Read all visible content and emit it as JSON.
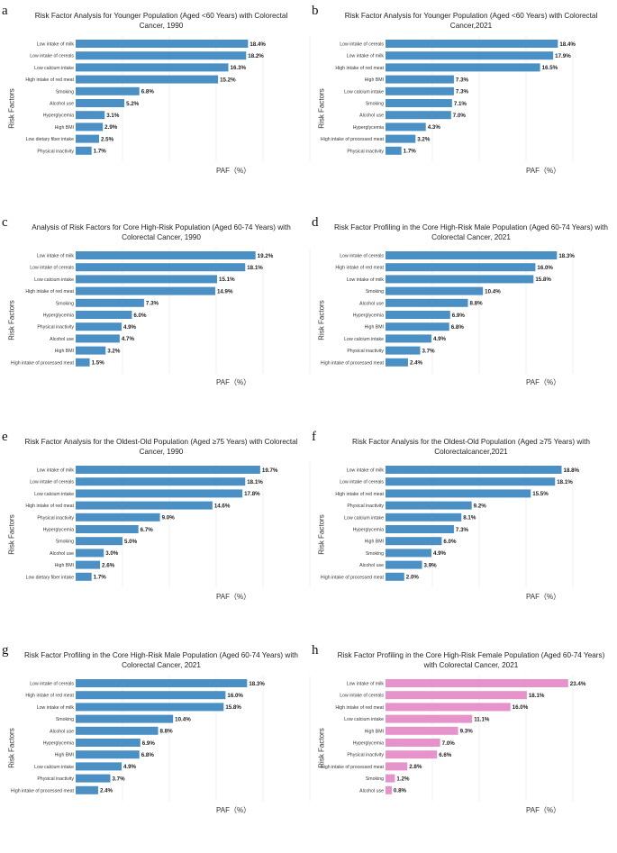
{
  "colors": {
    "blue": "#4a90c4",
    "pink": "#e693cc"
  },
  "chart_data": [
    {
      "letter": "a",
      "type": "bar",
      "orientation": "horizontal",
      "title": "Risk Factor Analysis for Younger Population (Aged <60 Years) with Colorectal Cancer, 1990",
      "ylabel": "Risk Factors",
      "xlabel": "PAF（%）",
      "color": "#4a90c4",
      "categories": [
        "Low intake of milk",
        "Low intake of cereals",
        "Low calcium intake",
        "High intake of red meat",
        "Smoking",
        "Alcohol use",
        "Hyperglycemia",
        "High BMI",
        "Low dietary fiber intake",
        "Physical inactivity"
      ],
      "values": [
        18.4,
        18.2,
        16.3,
        15.2,
        6.8,
        5.2,
        3.1,
        2.9,
        2.5,
        1.7
      ],
      "value_labels": [
        "18.4%",
        "18.2%",
        "16.3%",
        "15.2%",
        "6.8%",
        "5.2%",
        "3.1%",
        "2.9%",
        "2.5%",
        "1.7%"
      ]
    },
    {
      "letter": "b",
      "type": "bar",
      "orientation": "horizontal",
      "title": "Risk Factor Analysis for Younger Population (Aged <60 Years) with Colorectal Cancer,2021",
      "ylabel": "Risk Factors",
      "xlabel": "PAF（%）",
      "color": "#4a90c4",
      "categories": [
        "Low intake of cereals",
        "Low intake of milk",
        "High intake of red meat",
        "High BMI",
        "Low calcium intake",
        "Smoking",
        "Alcohol use",
        "Hyperglycemia",
        "High intake of processed meat",
        "Physical inactivity"
      ],
      "values": [
        18.4,
        17.9,
        16.5,
        7.3,
        7.3,
        7.1,
        7.0,
        4.3,
        3.2,
        1.7
      ],
      "value_labels": [
        "18.4%",
        "17.9%",
        "16.5%",
        "7.3%",
        "7.3%",
        "7.1%",
        "7.0%",
        "4.3%",
        "3.2%",
        "1.7%"
      ]
    },
    {
      "letter": "c",
      "type": "bar",
      "orientation": "horizontal",
      "title": "Analysis of Risk Factors for Core High-Risk Population (Aged 60-74 Years) with Colorectal Cancer, 1990",
      "ylabel": "Risk Factors",
      "xlabel": "PAF（%）",
      "color": "#4a90c4",
      "categories": [
        "Low intake of milk",
        "Low intake of cereals",
        "Low calcium intake",
        "High intake of red meat",
        "Smoking",
        "Hyperglycemia",
        "Physical inactivity",
        "Alcohol use",
        "High BMI",
        "High intake of processed meat"
      ],
      "values": [
        19.2,
        18.1,
        15.1,
        14.9,
        7.3,
        6.0,
        4.9,
        4.7,
        3.2,
        1.5
      ],
      "value_labels": [
        "19.2%",
        "18.1%",
        "15.1%",
        "14.9%",
        "7.3%",
        "6.0%",
        "4.9%",
        "4.7%",
        "3.2%",
        "1.5%"
      ]
    },
    {
      "letter": "d",
      "type": "bar",
      "orientation": "horizontal",
      "title": "Risk Factor Profiling in the Core High-Risk Male Population (Aged 60-74 Years) with Colorectal Cancer, 2021",
      "ylabel": "Risk Factors",
      "xlabel": "PAF（%）",
      "color": "#4a90c4",
      "categories": [
        "Low intake of cereals",
        "High intake of red meat",
        "Low intake of milk",
        "Smoking",
        "Alcohol use",
        "Hyperglycemia",
        "High BMI",
        "Low calcium intake",
        "Physical inactivity",
        "High intake of processed meat"
      ],
      "values": [
        18.3,
        16.0,
        15.8,
        10.4,
        8.8,
        6.9,
        6.8,
        4.9,
        3.7,
        2.4
      ],
      "value_labels": [
        "18.3%",
        "16.0%",
        "15.8%",
        "10.4%",
        "8.8%",
        "6.9%",
        "6.8%",
        "4.9%",
        "3.7%",
        "2.4%"
      ]
    },
    {
      "letter": "e",
      "type": "bar",
      "orientation": "horizontal",
      "title": "Risk Factor Analysis for the Oldest-Old Population (Aged ≥75 Years) with Colorectal Cancer, 1990",
      "ylabel": "Risk Factors",
      "xlabel": "PAF（%）",
      "color": "#4a90c4",
      "categories": [
        "Low intake of milk",
        "Low intake of cereals",
        "Low calcium intake",
        "High intake of red meat",
        "Physical inactivity",
        "Hyperglycemia",
        "Smoking",
        "Alcohol use",
        "High BMI",
        "Low dietary fiber intake"
      ],
      "values": [
        19.7,
        18.1,
        17.8,
        14.6,
        9.0,
        6.7,
        5.0,
        3.0,
        2.6,
        1.7
      ],
      "value_labels": [
        "19.7%",
        "18.1%",
        "17.8%",
        "14.6%",
        "9.0%",
        "6.7%",
        "5.0%",
        "3.0%",
        "2.6%",
        "1.7%"
      ]
    },
    {
      "letter": "f",
      "type": "bar",
      "orientation": "horizontal",
      "title": "Risk Factor Analysis for the Oldest-Old Population (Aged ≥75 Years) with Colorectalcancer,2021",
      "ylabel": "Risk Factors",
      "xlabel": "PAF（%）",
      "color": "#4a90c4",
      "categories": [
        "Low intake of milk",
        "Low intake of cereals",
        "High intake of red meat",
        "Physical inactivity",
        "Low calcium intake",
        "Hyperglycemia",
        "High BMI",
        "Smoking",
        "Alcohol use",
        "High intake of processed meat"
      ],
      "values": [
        18.8,
        18.1,
        15.5,
        9.2,
        8.1,
        7.3,
        6.0,
        4.9,
        3.9,
        2.0
      ],
      "value_labels": [
        "18.8%",
        "18.1%",
        "15.5%",
        "9.2%",
        "8.1%",
        "7.3%",
        "6.0%",
        "4.9%",
        "3.9%",
        "2.0%"
      ]
    },
    {
      "letter": "g",
      "type": "bar",
      "orientation": "horizontal",
      "title": "Risk Factor Profiling in the Core High-Risk Male Population (Aged 60-74 Years) with Colorectal Cancer, 2021",
      "ylabel": "Risk Factors",
      "xlabel": "PAF（%）",
      "color": "#4a90c4",
      "categories": [
        "Low intake of cereals",
        "High intake of red meat",
        "Low intake of milk",
        "Smoking",
        "Alcohol use",
        "Hyperglycemia",
        "High BMI",
        "Low calcium intake",
        "Physical inactivity",
        "High intake of processed meat"
      ],
      "values": [
        18.3,
        16.0,
        15.8,
        10.4,
        8.8,
        6.9,
        6.8,
        4.9,
        3.7,
        2.4
      ],
      "value_labels": [
        "18.3%",
        "16.0%",
        "15.8%",
        "10.4%",
        "8.8%",
        "6.9%",
        "6.8%",
        "4.9%",
        "3.7%",
        "2.4%"
      ]
    },
    {
      "letter": "h",
      "type": "bar",
      "orientation": "horizontal",
      "title": "Risk Factor Profiling in the Core High-Risk Female Population (Aged 60-74 Years) with Colorectal Cancer, 2021",
      "ylabel": "Risk Factors",
      "xlabel": "PAF（%）",
      "color": "#e693cc",
      "categories": [
        "Low intake of milk",
        "Low intake of cereals",
        "High intake of red meat",
        "Low calcium intake",
        "High BMI",
        "Hyperglycemia",
        "Physical inactivity",
        "High intake of processed meat",
        "Smoking",
        "Alcohol use"
      ],
      "values": [
        23.4,
        18.1,
        16.0,
        11.1,
        9.3,
        7.0,
        6.6,
        2.8,
        1.2,
        0.8
      ],
      "value_labels": [
        "23.4%",
        "18.1%",
        "16.0%",
        "11.1%",
        "9.3%",
        "7.0%",
        "6.6%",
        "2.8%",
        "1.2%",
        "0.8%"
      ]
    }
  ]
}
